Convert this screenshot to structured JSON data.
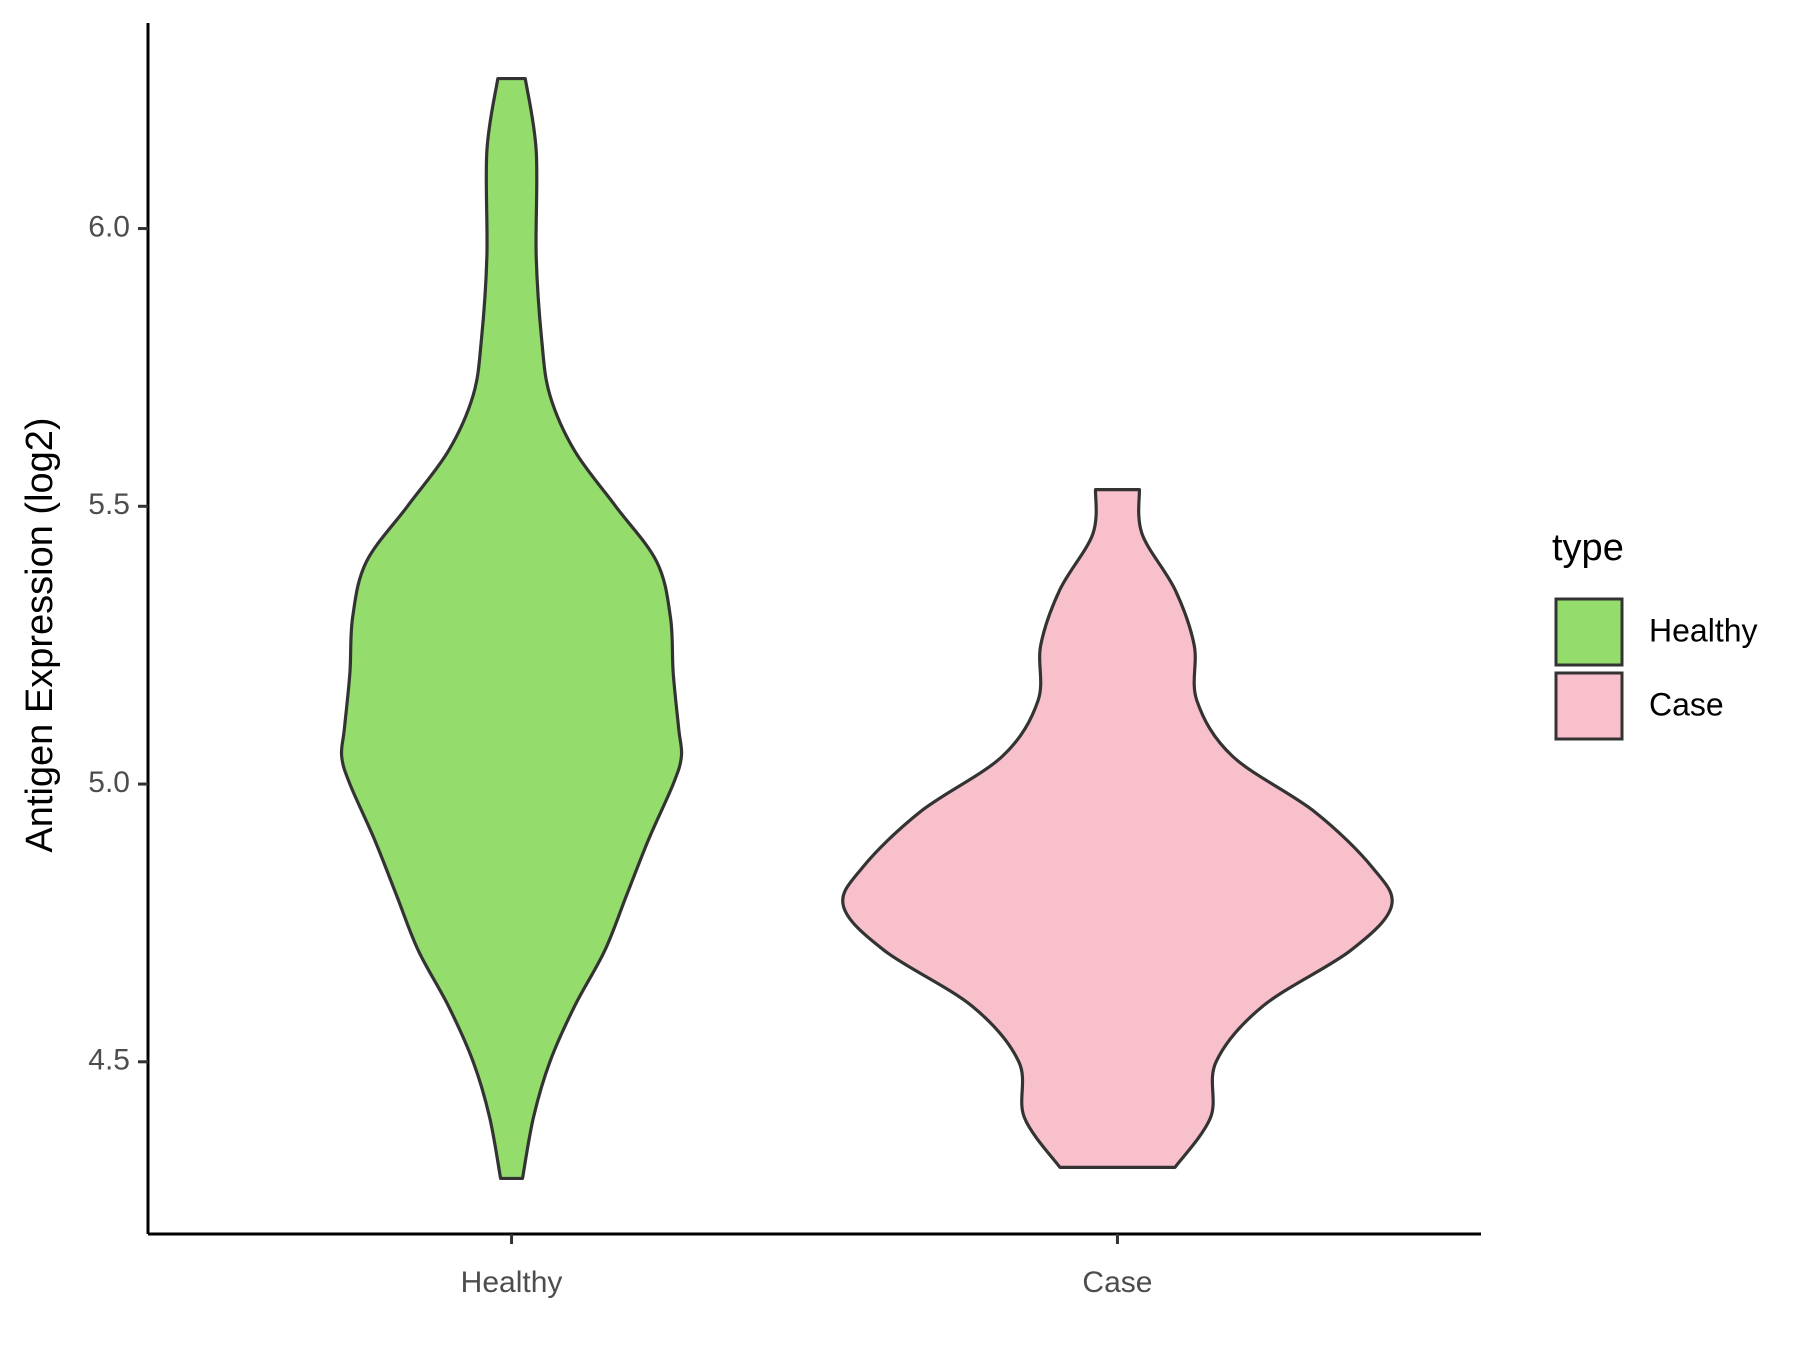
{
  "chart_data": {
    "type": "violin",
    "y_label": "Antigen Expression (log2)",
    "categories": [
      "Healthy",
      "Case"
    ],
    "legend_title": "type",
    "series": [
      {
        "name": "Healthy",
        "color": "#94dc6b",
        "y": [
          6.27,
          6.14,
          5.95,
          5.8,
          5.7,
          5.6,
          5.5,
          5.4,
          5.3,
          5.2,
          5.1,
          5.05,
          5.0,
          4.9,
          4.8,
          4.7,
          4.6,
          4.5,
          4.4,
          4.29
        ],
        "density": [
          0.05,
          0.09,
          0.09,
          0.11,
          0.14,
          0.23,
          0.38,
          0.53,
          0.58,
          0.59,
          0.61,
          0.62,
          0.59,
          0.5,
          0.42,
          0.34,
          0.23,
          0.14,
          0.08,
          0.04
        ]
      },
      {
        "name": "Case",
        "color": "#f8c0cb",
        "y": [
          5.53,
          5.45,
          5.35,
          5.25,
          5.15,
          5.05,
          4.95,
          4.85,
          4.78,
          4.7,
          4.6,
          4.5,
          4.4,
          4.31
        ],
        "density": [
          0.08,
          0.09,
          0.21,
          0.28,
          0.29,
          0.42,
          0.72,
          0.93,
          1.0,
          0.85,
          0.53,
          0.36,
          0.34,
          0.21
        ]
      }
    ],
    "ylim": [
      4.19,
      6.37
    ],
    "yticks": [
      {
        "value": 4.5,
        "label": "4.5"
      },
      {
        "value": 5.0,
        "label": "5.0"
      },
      {
        "value": 5.5,
        "label": "5.5"
      },
      {
        "value": 6.0,
        "label": "6.0"
      }
    ],
    "grid": false,
    "legend": "right"
  }
}
